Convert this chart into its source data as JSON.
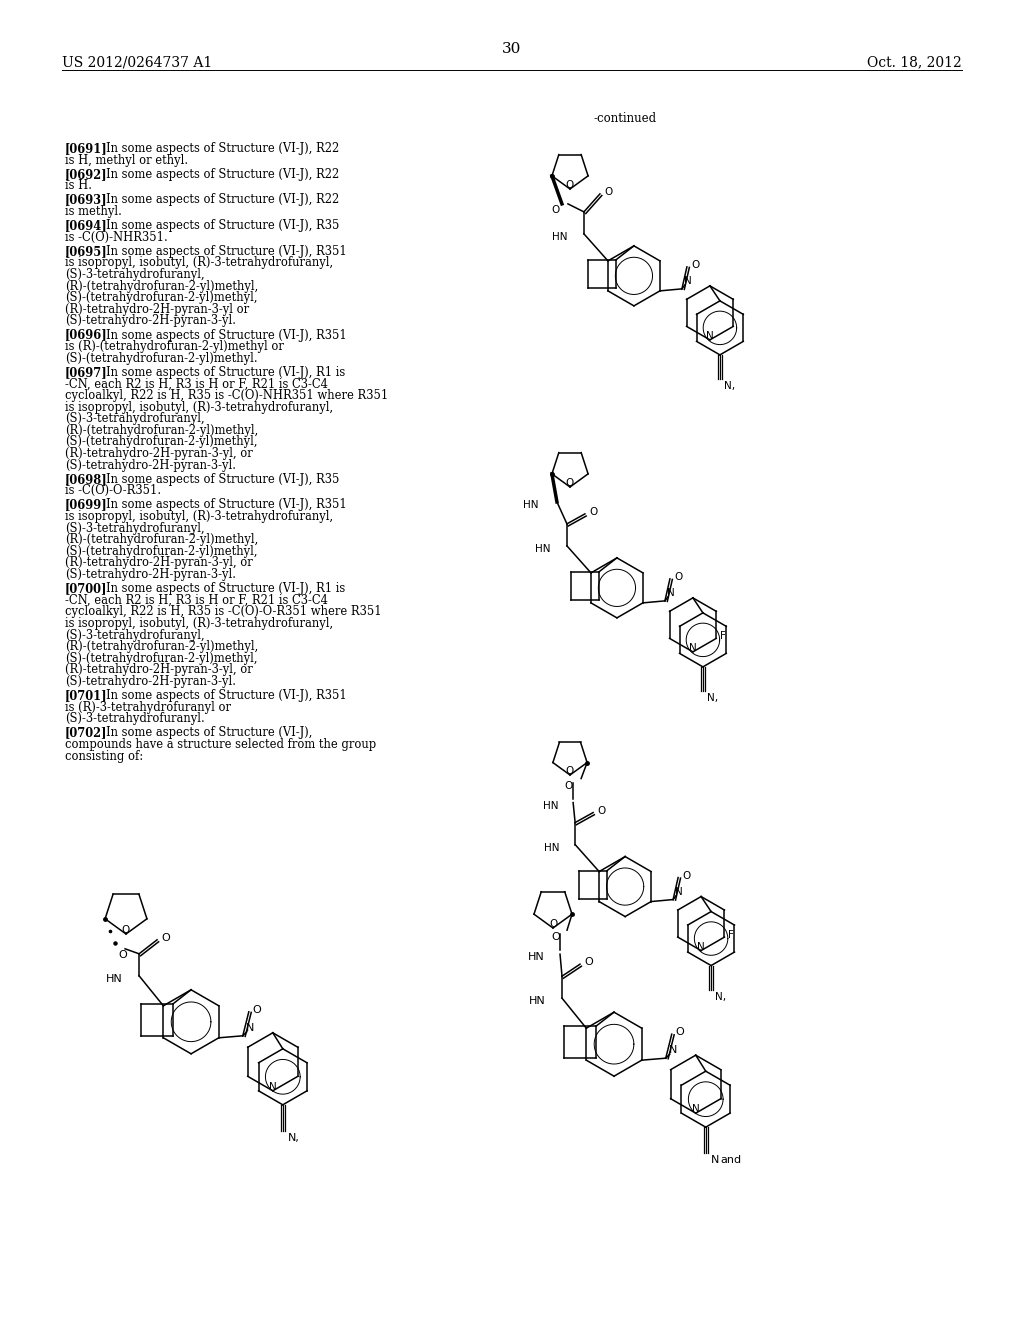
{
  "header_left": "US 2012/0264737 A1",
  "header_right": "Oct. 18, 2012",
  "page_number": "30",
  "continued": "-continued",
  "bg": "#ffffff",
  "paragraphs": [
    {
      "tag": "[0691]",
      "text": "In some aspects of Structure (VI-J), R22 is H, methyl or ethyl."
    },
    {
      "tag": "[0692]",
      "text": "In some aspects of Structure (VI-J), R22 is H."
    },
    {
      "tag": "[0693]",
      "text": "In some aspects of Structure (VI-J), R22 is methyl."
    },
    {
      "tag": "[0694]",
      "text": "In some aspects of Structure (VI-J), R35 is -C(O)-NHR351."
    },
    {
      "tag": "[0695]",
      "text": "In some aspects of Structure (VI-J), R351 is isopropyl, isobutyl, (R)-3-tetrahydrofuranyl, (S)-3-tetrahydrofuranyl, (R)-(tetrahydrofuran-2-yl)methyl, (S)-(tetrahydrofuran-2-yl)methyl, (R)-tetrahydro-2H-pyran-3-yl or (S)-tetrahydro-2H-pyran-3-yl."
    },
    {
      "tag": "[0696]",
      "text": "In some aspects of Structure (VI-J), R351 is (R)-(tetrahydrofuran-2-yl)methyl or (S)-(tetrahydrofuran-2-yl)methyl."
    },
    {
      "tag": "[0697]",
      "text": "In some aspects of Structure (VI-J), R1 is -CN, each R2 is H, R3 is H or F, R21 is C3-C4 cycloalkyl, R22 is H, R35 is -C(O)-NHR351 where R351 is isopropyl, isobutyl, (R)-3-tetrahydrofuranyl, (S)-3-tetrahydrofuranyl, (R)-(tetrahydrofuran-2-yl)methyl, (S)-(tetrahydrofuran-2-yl)methyl, (R)-tetrahydro-2H-pyran-3-yl, or (S)-tetrahydro-2H-pyran-3-yl."
    },
    {
      "tag": "[0698]",
      "text": "In some aspects of Structure (VI-J), R35 is -C(O)-O-R351."
    },
    {
      "tag": "[0699]",
      "text": "In some aspects of Structure (VI-J), R351 is isopropyl, isobutyl, (R)-3-tetrahydrofuranyl, (S)-3-tetrahydrofuranyl, (R)-(tetrahydrofuran-2-yl)methyl, (S)-(tetrahydrofuran-2-yl)methyl, (R)-tetrahydro-2H-pyran-3-yl, or (S)-tetrahydro-2H-pyran-3-yl."
    },
    {
      "tag": "[0700]",
      "text": "In some aspects of Structure (VI-J), R1 is -CN, each R2 is H, R3 is H or F, R21 is C3-C4 cycloalkyl, R22 is H, R35 is -C(O)-O-R351 where R351 is isopropyl, isobutyl, (R)-3-tetrahydrofuranyl, (S)-3-tetrahydrofuranyl, (R)-(tetrahydrofuran-2-yl)methyl, (S)-(tetrahydrofuran-2-yl)methyl, (R)-tetrahydro-2H-pyran-3-yl, or (S)-tetrahydro-2H-pyran-3-yl."
    },
    {
      "tag": "[0701]",
      "text": "In some aspects of Structure (VI-J), R351 is (R)-3-tetrahydrofuranyl or (S)-3-tetrahydrofuranyl."
    },
    {
      "tag": "[0702]",
      "text": "In some aspects of Structure (VI-J), compounds have a structure selected from the group consisting of:"
    }
  ]
}
